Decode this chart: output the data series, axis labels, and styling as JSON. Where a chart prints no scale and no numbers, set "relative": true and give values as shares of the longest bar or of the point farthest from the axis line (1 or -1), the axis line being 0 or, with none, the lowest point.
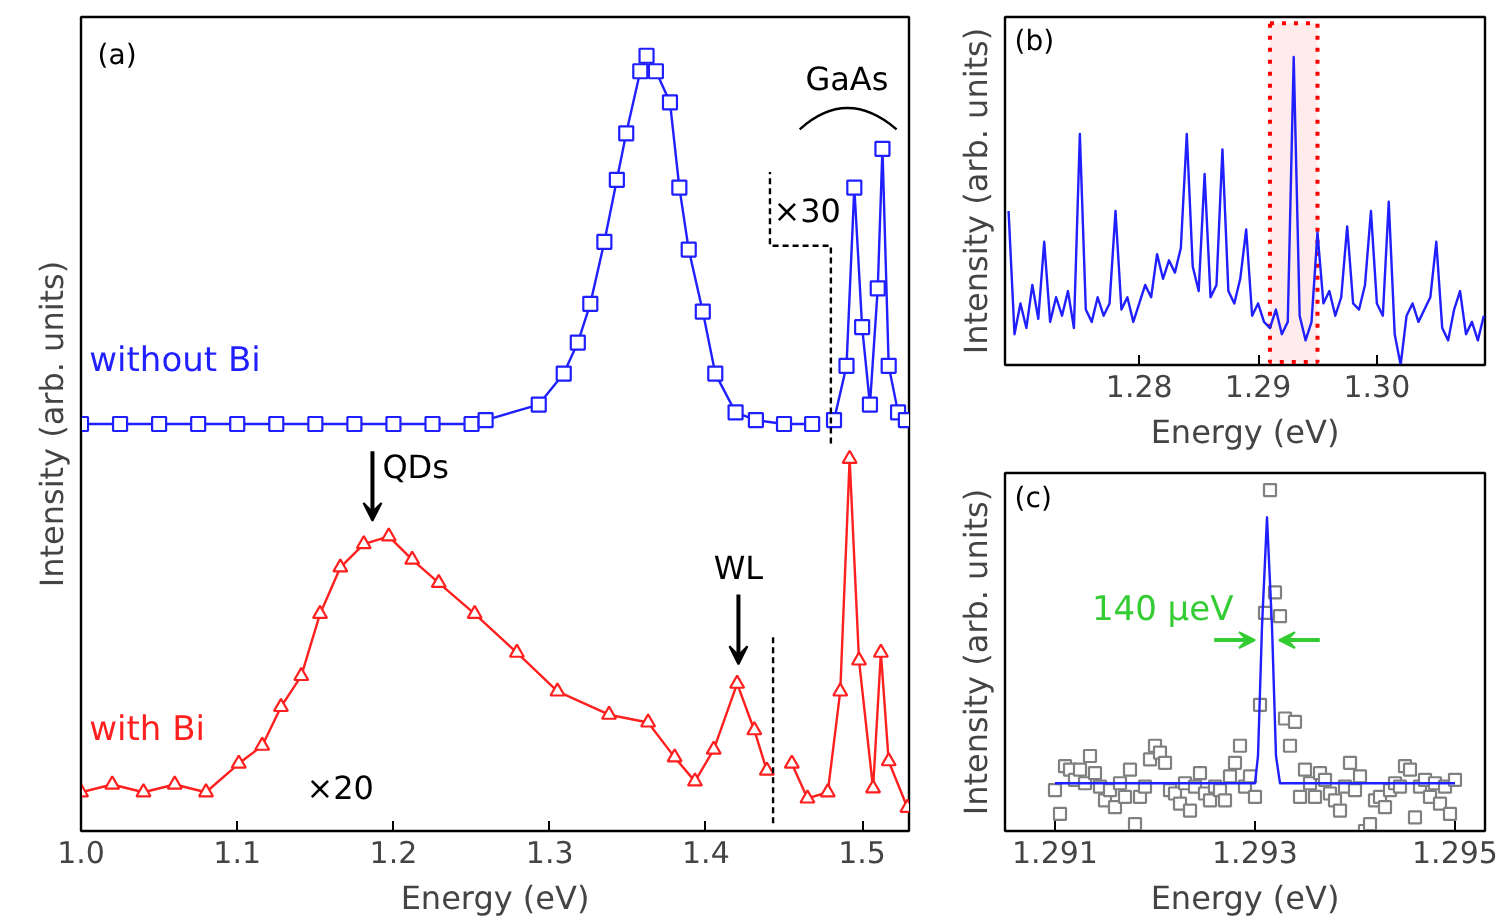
{
  "chart_data": [
    {
      "type": "line",
      "title": "(a)",
      "xlabel": "Energy (eV)",
      "ylabel": "Intensity (arb. units)",
      "xlim": [
        1.0,
        1.53
      ],
      "xticks": [
        {
          "value": 1,
          "label": "1.0"
        },
        1.1,
        1.2,
        1.3,
        1.4,
        1.5
      ],
      "relative": true,
      "annotations": [
        "×30",
        "GaAs",
        "QDs",
        "WL",
        "×20"
      ],
      "series": [
        {
          "name": "without Bi",
          "color": "#1f1fff",
          "marker": "square",
          "x": [
            1.0,
            1.025,
            1.05,
            1.075,
            1.1,
            1.125,
            1.15,
            1.175,
            1.2,
            1.225,
            1.25,
            1.259,
            1.293,
            1.309,
            1.318,
            1.326,
            1.335,
            1.343,
            1.349,
            1.358,
            1.362,
            1.368,
            1.377,
            1.383,
            1.389,
            1.398,
            1.406,
            1.419,
            1.432,
            1.45,
            1.468,
            1.479,
            1.482,
            1.49,
            1.495,
            1.5,
            1.505,
            1.51,
            1.513,
            1.517,
            1.523,
            1.528
          ],
          "values": [
            0.525,
            0.525,
            0.525,
            0.525,
            0.525,
            0.525,
            0.525,
            0.525,
            0.525,
            0.525,
            0.525,
            0.53,
            0.55,
            0.59,
            0.63,
            0.68,
            0.76,
            0.84,
            0.9,
            0.98,
            1.0,
            0.98,
            0.94,
            0.83,
            0.75,
            0.67,
            0.59,
            0.54,
            0.53,
            0.525,
            0.525,
            null,
            0.53,
            0.6,
            0.83,
            0.65,
            0.55,
            0.7,
            0.88,
            0.6,
            0.54,
            0.53
          ]
        },
        {
          "name": "with Bi",
          "color": "#ff1f1f",
          "marker": "triangle",
          "x": [
            1.0,
            1.02,
            1.04,
            1.06,
            1.08,
            1.101,
            1.116,
            1.128,
            1.141,
            1.153,
            1.166,
            1.181,
            1.197,
            1.212,
            1.229,
            1.252,
            1.279,
            1.305,
            1.338,
            1.363,
            1.38,
            1.393,
            1.405,
            1.42,
            1.431,
            1.439,
            1.441,
            1.455,
            1.465,
            1.478,
            1.486,
            1.492,
            1.498,
            1.507,
            1.512,
            1.517,
            1.529
          ],
          "values": [
            0.05,
            0.06,
            0.05,
            0.06,
            0.05,
            0.087,
            0.11,
            0.16,
            0.2,
            0.28,
            0.34,
            0.37,
            0.38,
            0.35,
            0.32,
            0.28,
            0.23,
            0.18,
            0.15,
            0.14,
            0.095,
            0.064,
            0.105,
            0.19,
            0.13,
            0.078,
            null,
            0.087,
            0.042,
            0.05,
            0.18,
            0.48,
            0.22,
            0.055,
            0.23,
            0.09,
            0.03
          ]
        },
        {
          "type": "line",
          "color": "#000000",
          "line_style": "dashed",
          "marker": "none",
          "x": [
            1.48,
            1.48,
            1.441,
            1.441
          ],
          "values": [
            0.5,
            0.755,
            0.755,
            0.85
          ]
        },
        {
          "type": "line",
          "color": "#000000",
          "line_style": "dashed",
          "marker": "none",
          "x": [
            1.443,
            1.443
          ],
          "values": [
            0.01,
            0.255
          ]
        }
      ]
    },
    {
      "type": "line",
      "title": "(b)",
      "xlabel": "Energy (eV)",
      "ylabel": "Intensity (arb. units)",
      "xlim": [
        1.2687,
        1.3091
      ],
      "xticks": [
        1.28,
        1.29,
        {
          "value": 1.3,
          "label": "1.30"
        }
      ],
      "relative": true,
      "bands": [
        {
          "axis": "x",
          "from": 1.291,
          "to": 1.295,
          "color": "#ff0000"
        }
      ],
      "series": [
        {
          "color": "#1f1fff",
          "marker": "none",
          "x": [
            1.269,
            1.2695,
            1.27,
            1.2705,
            1.271,
            1.2715,
            1.272,
            1.2725,
            1.273,
            1.2735,
            1.274,
            1.2745,
            1.275,
            1.2755,
            1.276,
            1.2765,
            1.277,
            1.2775,
            1.278,
            1.2785,
            1.279,
            1.2795,
            1.28,
            1.2805,
            1.281,
            1.2815,
            1.282,
            1.2825,
            1.283,
            1.2835,
            1.284,
            1.2845,
            1.285,
            1.2855,
            1.286,
            1.2865,
            1.287,
            1.2875,
            1.288,
            1.2885,
            1.289,
            1.2895,
            1.29,
            1.2905,
            1.291,
            1.2915,
            1.292,
            1.2925,
            1.293,
            1.2935,
            1.294,
            1.2945,
            1.295,
            1.2955,
            1.296,
            1.2965,
            1.297,
            1.2975,
            1.298,
            1.2985,
            1.299,
            1.2995,
            1.3,
            1.3005,
            1.301,
            1.3015,
            1.302,
            1.3025,
            1.303,
            1.3035,
            1.304,
            1.3045,
            1.305,
            1.3055,
            1.306,
            1.3065,
            1.307,
            1.3075,
            1.308,
            1.3085,
            1.309
          ],
          "values": [
            0.5,
            0.1,
            0.2,
            0.12,
            0.26,
            0.15,
            0.4,
            0.14,
            0.22,
            0.16,
            0.24,
            0.12,
            0.75,
            0.18,
            0.14,
            0.22,
            0.16,
            0.2,
            0.5,
            0.18,
            0.22,
            0.14,
            0.2,
            0.26,
            0.22,
            0.36,
            0.28,
            0.34,
            0.3,
            0.38,
            0.75,
            0.32,
            0.24,
            0.62,
            0.22,
            0.26,
            0.7,
            0.24,
            0.2,
            0.28,
            0.44,
            0.16,
            0.2,
            0.14,
            0.12,
            0.18,
            0.1,
            0.14,
            1.0,
            0.16,
            0.08,
            0.14,
            0.43,
            0.2,
            0.24,
            0.16,
            0.22,
            0.45,
            0.2,
            0.18,
            0.26,
            0.5,
            0.2,
            0.16,
            0.53,
            0.1,
            0.0,
            0.16,
            0.2,
            0.14,
            0.18,
            0.22,
            0.4,
            0.12,
            0.08,
            0.18,
            0.24,
            0.1,
            0.14,
            0.08,
            0.16
          ]
        }
      ]
    },
    {
      "type": "scatter",
      "title": "(c)",
      "xlabel": "Energy (eV)",
      "ylabel": "Intensity (arb. units)",
      "xlim": [
        1.2905,
        1.2953
      ],
      "xticks": [
        1.291,
        1.293,
        1.295
      ],
      "relative": true,
      "annotations": [
        {
          "text": "140 µeV",
          "x": 1.29312,
          "y": 0.56
        }
      ],
      "series": [
        {
          "color": "#808080",
          "marker": "square",
          "x": [
            1.291,
            1.29105,
            1.2911,
            1.29115,
            1.2912,
            1.29125,
            1.2913,
            1.29135,
            1.2914,
            1.29145,
            1.2915,
            1.29155,
            1.2916,
            1.29165,
            1.2917,
            1.29175,
            1.2918,
            1.29185,
            1.2919,
            1.29195,
            1.292,
            1.29205,
            1.2921,
            1.29215,
            1.2922,
            1.29225,
            1.2923,
            1.29235,
            1.2924,
            1.29245,
            1.2925,
            1.29255,
            1.2926,
            1.29265,
            1.2927,
            1.29275,
            1.2928,
            1.29285,
            1.2929,
            1.29295,
            1.293,
            1.29305,
            1.2931,
            1.29315,
            1.2932,
            1.29325,
            1.2933,
            1.29335,
            1.2934,
            1.29345,
            1.2935,
            1.29355,
            1.2936,
            1.29365,
            1.2937,
            1.29375,
            1.2938,
            1.29385,
            1.2939,
            1.29395,
            1.294,
            1.29405,
            1.2941,
            1.29415,
            1.2942,
            1.29425,
            1.2943,
            1.29435,
            1.2944,
            1.29445,
            1.2945,
            1.29455,
            1.2946,
            1.29465,
            1.2947,
            1.29475,
            1.2948,
            1.29485,
            1.2949,
            1.29495,
            1.295
          ],
          "values": [
            0.12,
            0.05,
            0.19,
            0.18,
            0.15,
            0.18,
            0.14,
            0.22,
            0.17,
            0.13,
            0.09,
            0.12,
            0.07,
            0.14,
            0.1,
            0.18,
            0.02,
            0.1,
            0.13,
            0.21,
            0.25,
            0.23,
            0.2,
            0.12,
            0.11,
            0.08,
            0.14,
            0.06,
            0.13,
            0.17,
            0.11,
            0.09,
            0.13,
            0.12,
            0.09,
            0.16,
            0.2,
            0.25,
            0.13,
            0.16,
            0.1,
            0.37,
            0.64,
            1.0,
            0.7,
            0.63,
            0.33,
            0.25,
            0.32,
            0.1,
            0.18,
            0.14,
            0.1,
            0.17,
            0.15,
            0.11,
            0.09,
            0.06,
            0.13,
            0.2,
            0.12,
            0.16,
            0.0,
            0.02,
            0.09,
            0.1,
            0.07,
            0.12,
            0.14,
            0.13,
            0.19,
            0.18,
            0.04,
            0.13,
            0.15,
            0.1,
            0.14,
            0.08,
            0.13,
            0.05,
            0.15
          ]
        },
        {
          "type": "line",
          "color": "#1f1fff",
          "marker": "none",
          "x": [
            1.291,
            1.293,
            1.29303,
            1.29307,
            1.29312,
            1.29317,
            1.29321,
            1.29325,
            1.295
          ],
          "values": [
            0.14,
            0.14,
            0.22,
            0.6,
            0.92,
            0.6,
            0.22,
            0.14,
            0.14
          ]
        }
      ]
    }
  ]
}
